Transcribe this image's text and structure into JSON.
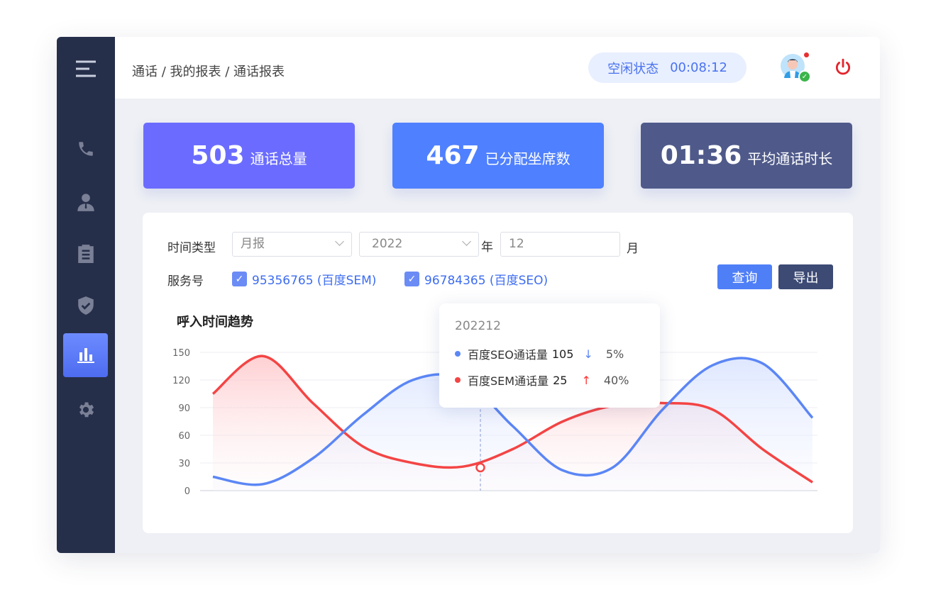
{
  "breadcrumb": "通话 / 我的报表 / 通话报表",
  "status": {
    "label": "空闲状态",
    "timer": "00:08:12"
  },
  "sidebar": {
    "items": [
      "menu-icon",
      "phone-icon",
      "user-icon",
      "clipboard-icon",
      "shield-icon",
      "chart-icon",
      "gear-icon"
    ],
    "active": "chart-icon"
  },
  "cards": [
    {
      "value": "503",
      "label": "通话总量",
      "color": "#6b6cff"
    },
    {
      "value": "467",
      "label": "已分配坐席数",
      "color": "#4f80ff"
    },
    {
      "value": "01:36",
      "label": "平均通话时长",
      "color": "#4f5a8a"
    }
  ],
  "filters": {
    "time_type_label": "时间类型",
    "time_type_value": "月报",
    "year_value": "2022",
    "year_suffix": "年",
    "month_value": "12",
    "month_suffix": "月",
    "service_label": "服务号",
    "services": [
      "95356765 (百度SEM)",
      "96784365 (百度SEO)"
    ],
    "query": "查询",
    "export": "导出"
  },
  "chart_data": {
    "type": "area",
    "title": "呼入时间趋势",
    "ylim": [
      0,
      150
    ],
    "yticks": [
      "0",
      "30",
      "60",
      "90",
      "120",
      "150"
    ],
    "grid": true,
    "series": [
      {
        "name": "百度SEO通话量",
        "color": "#5b86f5",
        "values": [
          15,
          7,
          35,
          82,
          120,
          121,
          70,
          22,
          25,
          88,
          136,
          138,
          79
        ]
      },
      {
        "name": "百度SEM通话量",
        "color": "#f44444",
        "values": [
          105,
          146,
          95,
          48,
          30,
          26,
          45,
          75,
          92,
          95,
          88,
          45,
          9
        ]
      }
    ],
    "tooltip": {
      "title": "202212",
      "rows": [
        {
          "name": "百度SEO通话量",
          "value": "105",
          "trend": "↓",
          "change": "5%"
        },
        {
          "name": "百度SEM通话量",
          "value": "25",
          "trend": "↑",
          "change": "40%"
        }
      ]
    }
  }
}
